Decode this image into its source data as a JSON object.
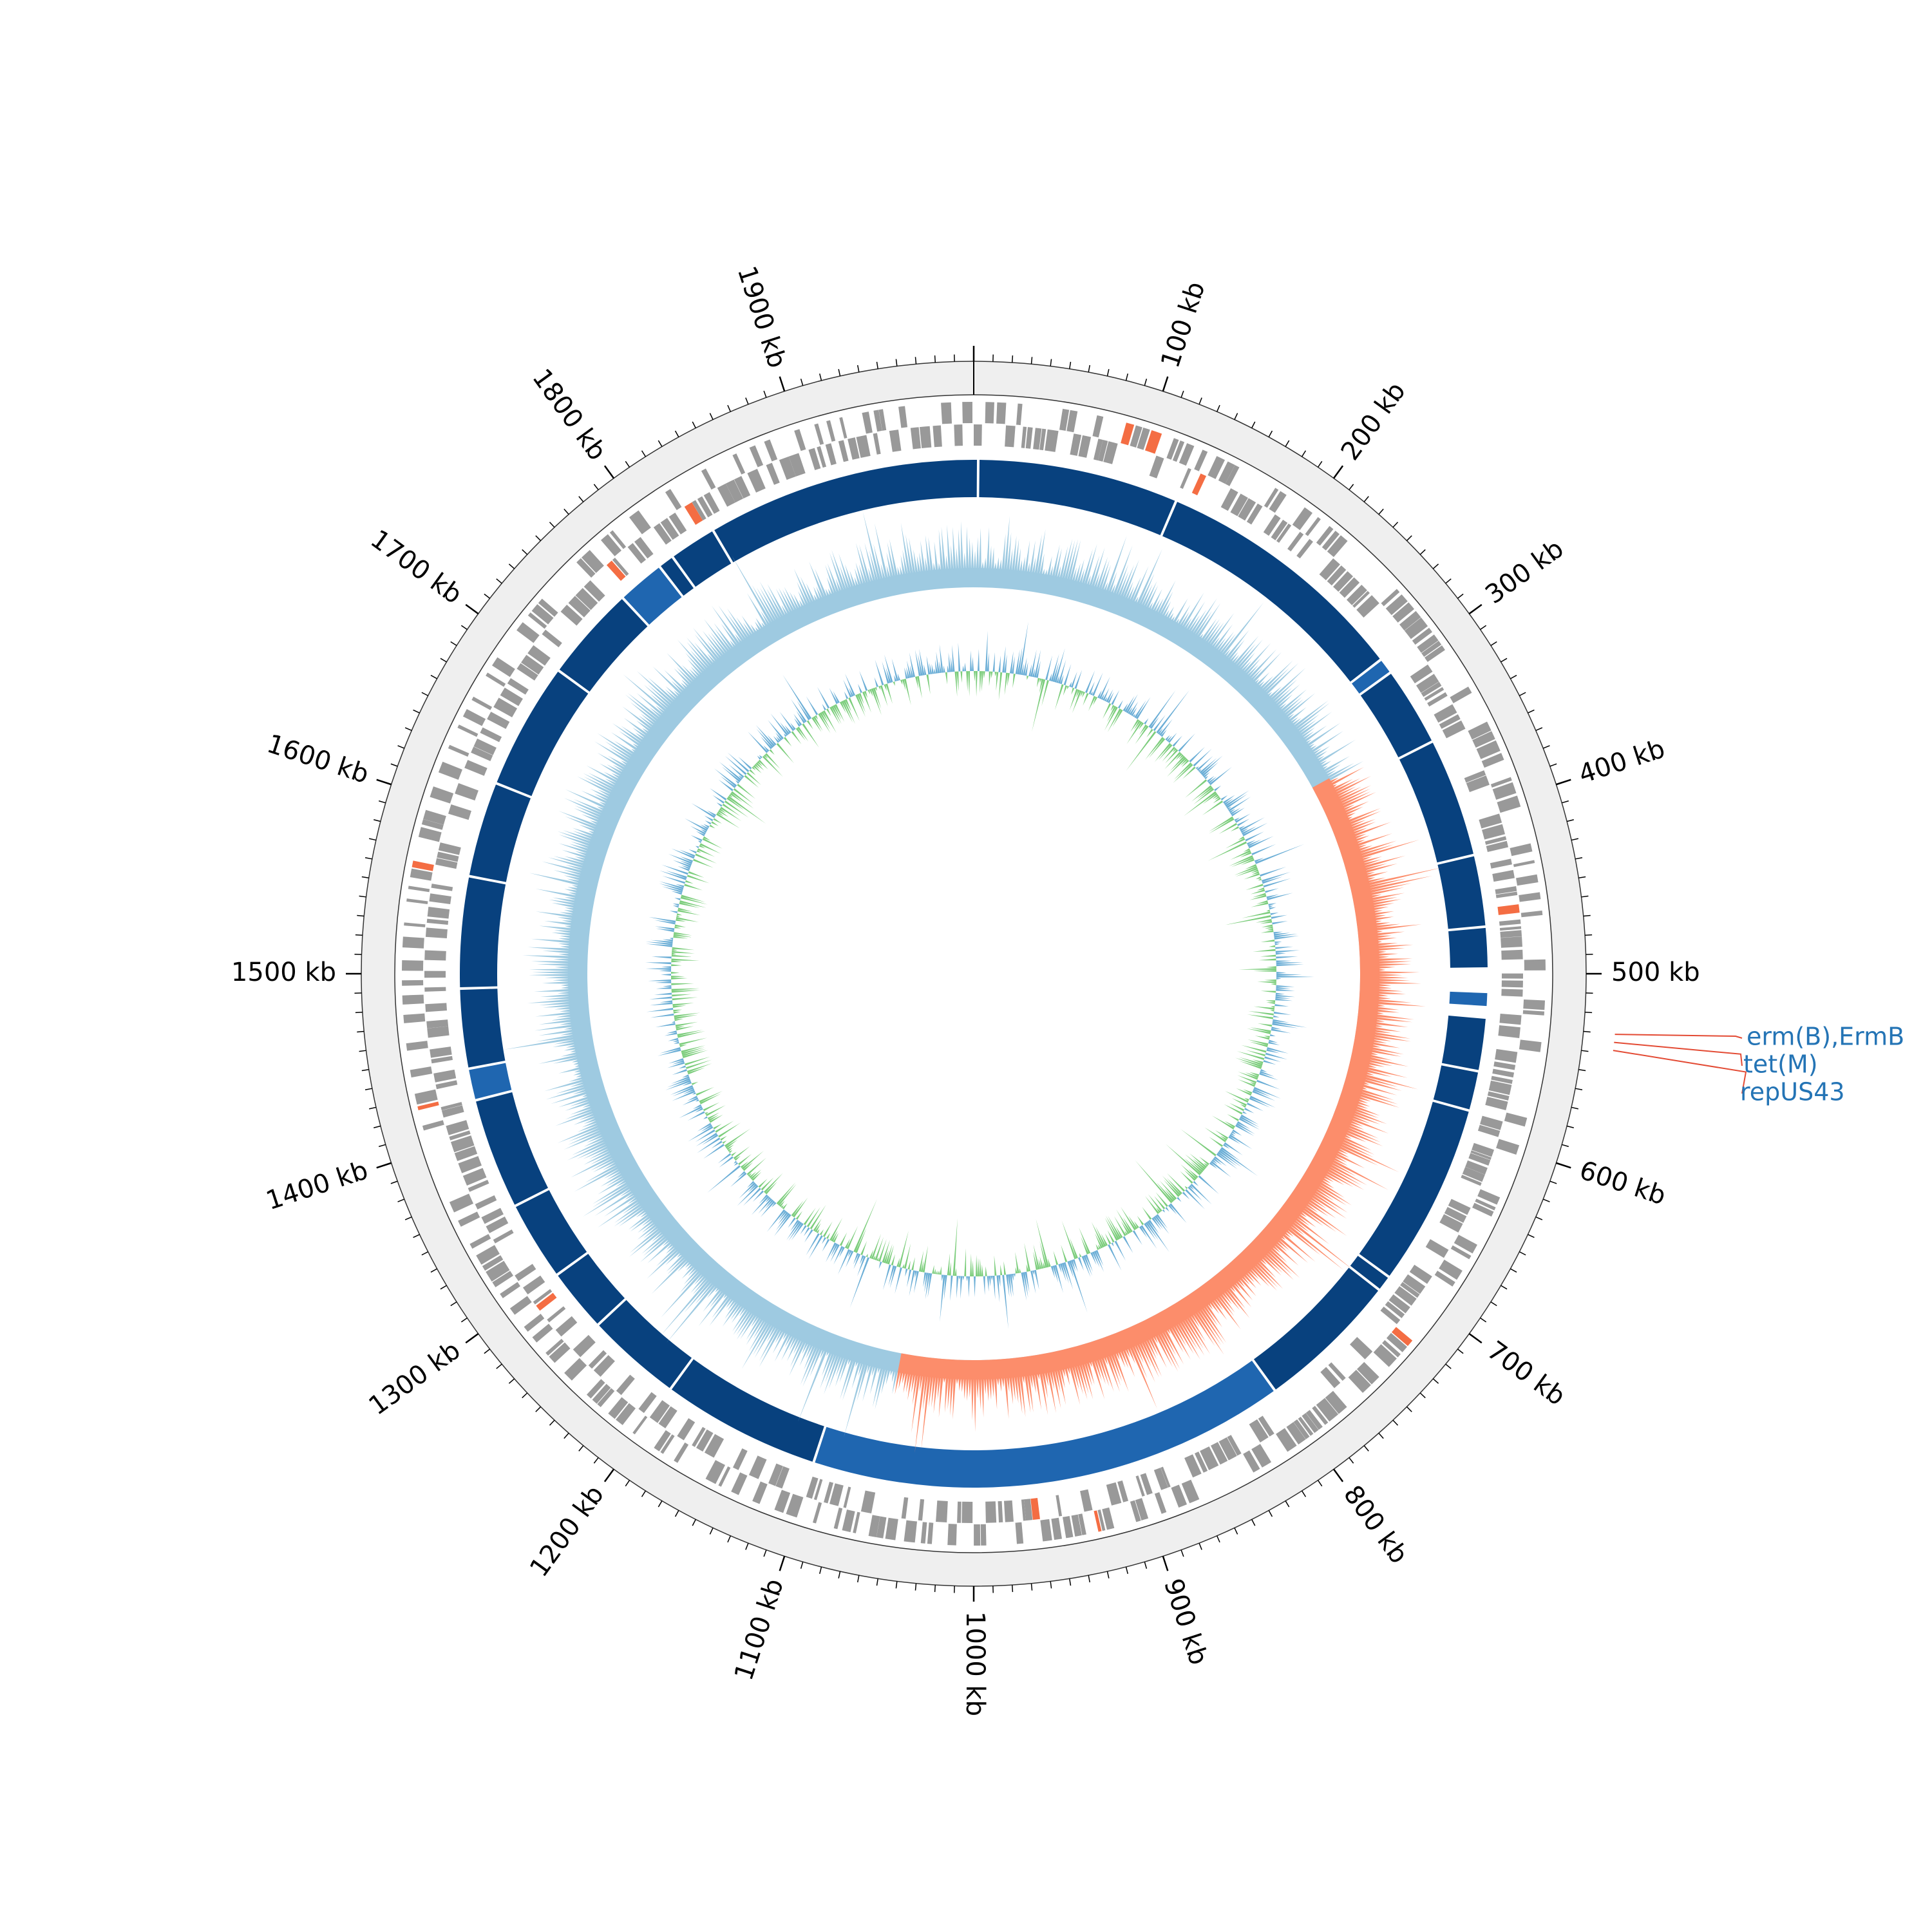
{
  "genome": {
    "length_kb": 2000,
    "tick_step_kb": 10,
    "label_step_kb": 100
  },
  "tick_labels": [
    "100 kb",
    "200 kb",
    "300 kb",
    "400 kb",
    "500 kb",
    "600 kb",
    "700 kb",
    "800 kb",
    "900 kb",
    "1000 kb",
    "1100 kb",
    "1200 kb",
    "1300 kb",
    "1400 kb",
    "1500 kb",
    "1600 kb",
    "1700 kb",
    "1800 kb",
    "1900 kb"
  ],
  "annotated_genes": [
    {
      "label": "erm(B),ErmB",
      "position_kb": 530
    },
    {
      "label": "tet(M)",
      "position_kb": 534
    },
    {
      "label": "repUS43",
      "position_kb": 538
    }
  ],
  "tracks": {
    "ring_background": "#efefef",
    "gene_color": "#999999",
    "gene_highlight_color": "#f46d43",
    "contig_color": "#08417e",
    "contig_alt_color": "#1f66b0",
    "gc_skew_positive": "#9ecae1",
    "gc_skew_negative": "#fc8d6b",
    "gc_content_above": "#6baed6",
    "gc_content_below": "#7ccd7c",
    "annotation_line_color": "#e34a33",
    "annotation_text_color": "#2474b5"
  },
  "contig_gaps_kb": [
    2,
    128,
    290,
    300,
    350,
    425,
    470,
    496,
    504,
    520,
    560,
    585,
    700,
    710,
    800,
    1100,
    1200,
    1260,
    1300,
    1350,
    1420,
    1440,
    1490,
    1560,
    1620,
    1700,
    1760,
    1790,
    1800,
    1830
  ]
}
